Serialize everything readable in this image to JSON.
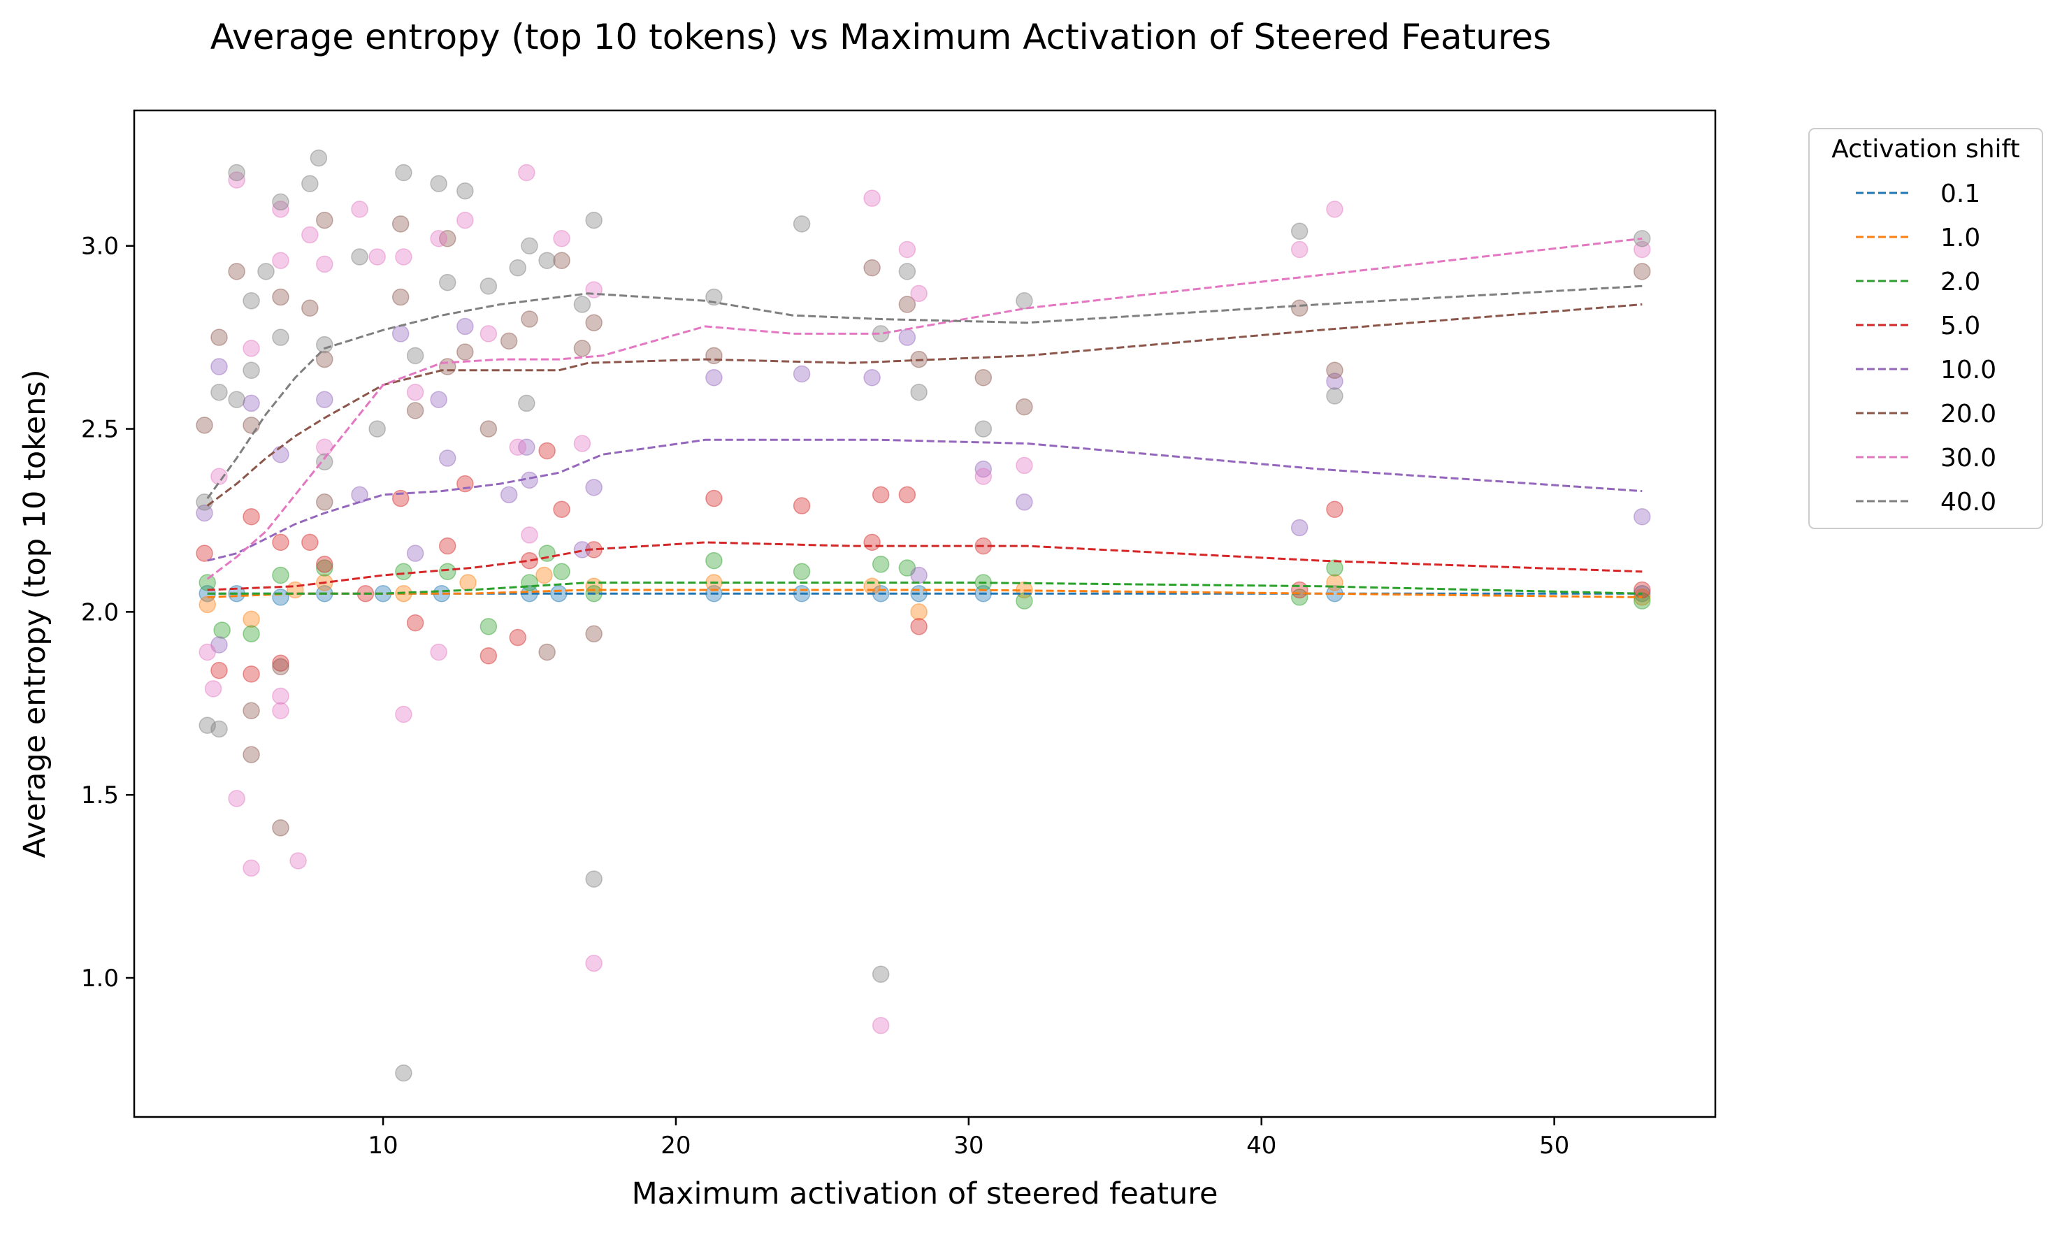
{
  "chart_data": {
    "type": "scatter",
    "title": "Average entropy (top 10 tokens) vs Maximum Activation of Steered Features",
    "xlabel": "Maximum activation of steered feature",
    "ylabel": "Average entropy (top 10 tokens)",
    "xlim": [
      1.5,
      55.5
    ],
    "ylim": [
      0.62,
      3.37
    ],
    "xticks": [
      10,
      20,
      30,
      40,
      50
    ],
    "yticks": [
      1.0,
      1.5,
      2.0,
      2.5,
      3.0
    ],
    "ytick_labels": [
      "1.0",
      "1.5",
      "2.0",
      "2.5",
      "3.0"
    ],
    "grid": false,
    "legend_title": "Activation shift",
    "legend_position": "outside-right-top",
    "series": [
      {
        "name": "0.1",
        "color": "#1f77b4",
        "trend": {
          "x": [
            4,
            7,
            10,
            13,
            17,
            21,
            26,
            30,
            42,
            53
          ],
          "y": [
            2.05,
            2.05,
            2.05,
            2.05,
            2.05,
            2.05,
            2.05,
            2.05,
            2.05,
            2.05
          ]
        },
        "points": [
          [
            4,
            2.05
          ],
          [
            5,
            2.05
          ],
          [
            6.5,
            2.04
          ],
          [
            8,
            2.05
          ],
          [
            10,
            2.05
          ],
          [
            12,
            2.05
          ],
          [
            15,
            2.05
          ],
          [
            16,
            2.05
          ],
          [
            21.3,
            2.05
          ],
          [
            24.3,
            2.05
          ],
          [
            27,
            2.05
          ],
          [
            28.3,
            2.05
          ],
          [
            30.5,
            2.05
          ],
          [
            42.5,
            2.05
          ],
          [
            53,
            2.05
          ]
        ]
      },
      {
        "name": "1.0",
        "color": "#ff7f0e",
        "trend": {
          "x": [
            4,
            7,
            10,
            13,
            17,
            21,
            26,
            30,
            42,
            53
          ],
          "y": [
            2.04,
            2.05,
            2.05,
            2.05,
            2.06,
            2.06,
            2.06,
            2.06,
            2.05,
            2.04
          ]
        },
        "points": [
          [
            4,
            2.02
          ],
          [
            5.5,
            1.98
          ],
          [
            7,
            2.06
          ],
          [
            8,
            2.08
          ],
          [
            10.7,
            2.05
          ],
          [
            12.9,
            2.08
          ],
          [
            15.5,
            2.1
          ],
          [
            17.2,
            2.07
          ],
          [
            21.3,
            2.08
          ],
          [
            26.7,
            2.07
          ],
          [
            28.3,
            2.0
          ],
          [
            31.9,
            2.06
          ],
          [
            42.5,
            2.08
          ],
          [
            53,
            2.04
          ]
        ]
      },
      {
        "name": "2.0",
        "color": "#2ca02c",
        "trend": {
          "x": [
            4,
            7,
            10,
            13,
            17,
            21,
            26,
            30,
            42,
            53
          ],
          "y": [
            2.05,
            2.05,
            2.05,
            2.06,
            2.08,
            2.08,
            2.08,
            2.08,
            2.07,
            2.05
          ]
        },
        "points": [
          [
            4,
            2.08
          ],
          [
            4.5,
            1.95
          ],
          [
            5.5,
            1.94
          ],
          [
            6.5,
            2.1
          ],
          [
            8,
            2.12
          ],
          [
            10.7,
            2.11
          ],
          [
            12.2,
            2.11
          ],
          [
            13.6,
            1.96
          ],
          [
            15,
            2.08
          ],
          [
            15.6,
            2.16
          ],
          [
            16.1,
            2.11
          ],
          [
            17.2,
            2.05
          ],
          [
            21.3,
            2.14
          ],
          [
            24.3,
            2.11
          ],
          [
            27,
            2.13
          ],
          [
            27.9,
            2.12
          ],
          [
            30.5,
            2.08
          ],
          [
            31.9,
            2.03
          ],
          [
            41.3,
            2.04
          ],
          [
            42.5,
            2.12
          ],
          [
            53,
            2.03
          ]
        ]
      },
      {
        "name": "5.0",
        "color": "#d62728",
        "trend": {
          "x": [
            4,
            7,
            10,
            13,
            15,
            17,
            21,
            26,
            32,
            42,
            53
          ],
          "y": [
            2.06,
            2.07,
            2.1,
            2.12,
            2.14,
            2.17,
            2.19,
            2.18,
            2.18,
            2.14,
            2.11
          ]
        },
        "points": [
          [
            3.9,
            2.16
          ],
          [
            4.4,
            1.84
          ],
          [
            5.5,
            2.26
          ],
          [
            5.5,
            1.83
          ],
          [
            6.5,
            2.19
          ],
          [
            6.5,
            1.86
          ],
          [
            7.5,
            2.19
          ],
          [
            8,
            2.13
          ],
          [
            9.4,
            2.05
          ],
          [
            10.6,
            2.31
          ],
          [
            11.1,
            1.97
          ],
          [
            12.2,
            2.18
          ],
          [
            12.8,
            2.35
          ],
          [
            13.6,
            1.88
          ],
          [
            14.6,
            1.93
          ],
          [
            15,
            2.14
          ],
          [
            15.6,
            2.44
          ],
          [
            16.1,
            2.28
          ],
          [
            17.2,
            2.17
          ],
          [
            21.3,
            2.31
          ],
          [
            24.3,
            2.29
          ],
          [
            26.7,
            2.19
          ],
          [
            27,
            2.32
          ],
          [
            27.9,
            2.32
          ],
          [
            28.3,
            1.96
          ],
          [
            30.5,
            2.18
          ],
          [
            41.3,
            2.06
          ],
          [
            42.5,
            2.28
          ],
          [
            53,
            2.06
          ]
        ]
      },
      {
        "name": "10.0",
        "color": "#9467bd",
        "trend": {
          "x": [
            4,
            5,
            6,
            7,
            8,
            10,
            12,
            14,
            16,
            17.5,
            21,
            27,
            32,
            42,
            53
          ],
          "y": [
            2.14,
            2.16,
            2.2,
            2.24,
            2.27,
            2.32,
            2.33,
            2.35,
            2.38,
            2.43,
            2.47,
            2.47,
            2.46,
            2.39,
            2.33
          ]
        },
        "points": [
          [
            3.9,
            2.27
          ],
          [
            4.4,
            2.67
          ],
          [
            4.4,
            1.91
          ],
          [
            5.5,
            2.57
          ],
          [
            6.5,
            2.43
          ],
          [
            8,
            2.58
          ],
          [
            9.2,
            2.32
          ],
          [
            10.6,
            2.76
          ],
          [
            11.1,
            2.16
          ],
          [
            11.9,
            2.58
          ],
          [
            12.2,
            2.42
          ],
          [
            12.8,
            2.78
          ],
          [
            14.3,
            2.32
          ],
          [
            14.9,
            2.45
          ],
          [
            15,
            2.36
          ],
          [
            16.8,
            2.17
          ],
          [
            17.2,
            2.34
          ],
          [
            21.3,
            2.64
          ],
          [
            24.3,
            2.65
          ],
          [
            26.7,
            2.64
          ],
          [
            27.9,
            2.75
          ],
          [
            28.3,
            2.1
          ],
          [
            30.5,
            2.39
          ],
          [
            31.9,
            2.3
          ],
          [
            41.3,
            2.23
          ],
          [
            42.5,
            2.63
          ],
          [
            53,
            2.26
          ]
        ]
      },
      {
        "name": "20.0",
        "color": "#8c564b",
        "trend": {
          "x": [
            4,
            5,
            6,
            7,
            8,
            10,
            12,
            14,
            16,
            17,
            21,
            26,
            32,
            42,
            53
          ],
          "y": [
            2.29,
            2.35,
            2.42,
            2.48,
            2.53,
            2.62,
            2.66,
            2.66,
            2.66,
            2.68,
            2.69,
            2.68,
            2.7,
            2.77,
            2.84
          ]
        },
        "points": [
          [
            3.9,
            2.51
          ],
          [
            4.4,
            2.75
          ],
          [
            5,
            2.93
          ],
          [
            5.5,
            2.51
          ],
          [
            5.5,
            1.73
          ],
          [
            5.5,
            1.61
          ],
          [
            6.5,
            2.86
          ],
          [
            6.5,
            1.41
          ],
          [
            6.5,
            1.85
          ],
          [
            7.5,
            2.83
          ],
          [
            8,
            3.07
          ],
          [
            8,
            2.69
          ],
          [
            8,
            2.3
          ],
          [
            10.6,
            3.06
          ],
          [
            10.6,
            2.86
          ],
          [
            11.1,
            2.55
          ],
          [
            12.2,
            2.67
          ],
          [
            12.2,
            3.02
          ],
          [
            12.8,
            2.71
          ],
          [
            13.6,
            2.5
          ],
          [
            14.3,
            2.74
          ],
          [
            15,
            2.8
          ],
          [
            15.6,
            1.89
          ],
          [
            16.1,
            2.96
          ],
          [
            16.8,
            2.72
          ],
          [
            17.2,
            2.79
          ],
          [
            17.2,
            1.94
          ],
          [
            21.3,
            2.7
          ],
          [
            26.7,
            2.94
          ],
          [
            27.9,
            2.84
          ],
          [
            28.3,
            2.69
          ],
          [
            30.5,
            2.64
          ],
          [
            31.9,
            2.56
          ],
          [
            41.3,
            2.83
          ],
          [
            42.5,
            2.66
          ],
          [
            53,
            2.93
          ]
        ]
      },
      {
        "name": "30.0",
        "color": "#e377c2",
        "trend": {
          "x": [
            4,
            5,
            6,
            7,
            8,
            10,
            12,
            14,
            16,
            17.5,
            21,
            24,
            27,
            32,
            42,
            53
          ],
          "y": [
            2.09,
            2.15,
            2.22,
            2.32,
            2.42,
            2.62,
            2.68,
            2.69,
            2.69,
            2.7,
            2.78,
            2.76,
            2.76,
            2.83,
            2.92,
            3.02
          ]
        },
        "points": [
          [
            4,
            1.89
          ],
          [
            4.2,
            1.79
          ],
          [
            4.4,
            2.37
          ],
          [
            5,
            1.49
          ],
          [
            5,
            3.18
          ],
          [
            5.5,
            2.72
          ],
          [
            5.5,
            1.3
          ],
          [
            6.5,
            2.96
          ],
          [
            6.5,
            3.1
          ],
          [
            6.5,
            1.77
          ],
          [
            6.5,
            1.73
          ],
          [
            7.1,
            1.32
          ],
          [
            7.5,
            3.03
          ],
          [
            8,
            2.95
          ],
          [
            8,
            2.45
          ],
          [
            9.2,
            3.1
          ],
          [
            9.8,
            2.97
          ],
          [
            10.7,
            2.97
          ],
          [
            10.7,
            1.72
          ],
          [
            11.1,
            2.6
          ],
          [
            11.9,
            3.02
          ],
          [
            11.9,
            1.89
          ],
          [
            12.8,
            3.07
          ],
          [
            13.6,
            2.76
          ],
          [
            14.6,
            2.45
          ],
          [
            14.9,
            3.2
          ],
          [
            15,
            2.21
          ],
          [
            16.1,
            3.02
          ],
          [
            16.8,
            2.46
          ],
          [
            17.2,
            2.88
          ],
          [
            17.2,
            1.04
          ],
          [
            26.7,
            3.13
          ],
          [
            27,
            0.87
          ],
          [
            27.9,
            2.99
          ],
          [
            28.3,
            2.87
          ],
          [
            30.5,
            2.37
          ],
          [
            31.9,
            2.4
          ],
          [
            41.3,
            2.99
          ],
          [
            42.5,
            3.1
          ],
          [
            53,
            2.99
          ]
        ]
      },
      {
        "name": "40.0",
        "color": "#7f7f7f",
        "trend": {
          "x": [
            4,
            5,
            6,
            7,
            8,
            10,
            12,
            14,
            16,
            17,
            21,
            24,
            27,
            32,
            42,
            53
          ],
          "y": [
            2.31,
            2.42,
            2.54,
            2.64,
            2.72,
            2.77,
            2.81,
            2.84,
            2.86,
            2.87,
            2.85,
            2.81,
            2.8,
            2.79,
            2.84,
            2.89
          ]
        },
        "points": [
          [
            3.9,
            2.3
          ],
          [
            4,
            1.69
          ],
          [
            4.4,
            2.6
          ],
          [
            4.4,
            1.68
          ],
          [
            5,
            3.2
          ],
          [
            5,
            2.58
          ],
          [
            5.5,
            2.85
          ],
          [
            5.5,
            2.66
          ],
          [
            6,
            2.93
          ],
          [
            6.5,
            3.12
          ],
          [
            6.5,
            2.75
          ],
          [
            7.5,
            3.17
          ],
          [
            7.8,
            3.24
          ],
          [
            8,
            2.73
          ],
          [
            8,
            2.41
          ],
          [
            9.2,
            2.97
          ],
          [
            9.8,
            2.5
          ],
          [
            10.7,
            3.2
          ],
          [
            10.7,
            0.74
          ],
          [
            11.1,
            2.7
          ],
          [
            11.9,
            3.17
          ],
          [
            12.2,
            2.9
          ],
          [
            12.8,
            3.15
          ],
          [
            13.6,
            2.89
          ],
          [
            14.6,
            2.94
          ],
          [
            14.9,
            2.57
          ],
          [
            15,
            3.0
          ],
          [
            15.6,
            2.96
          ],
          [
            16.8,
            2.84
          ],
          [
            17.2,
            3.07
          ],
          [
            17.2,
            1.27
          ],
          [
            21.3,
            2.86
          ],
          [
            24.3,
            3.06
          ],
          [
            27,
            2.76
          ],
          [
            27,
            1.01
          ],
          [
            27.9,
            2.93
          ],
          [
            28.3,
            2.6
          ],
          [
            30.5,
            2.5
          ],
          [
            31.9,
            2.85
          ],
          [
            41.3,
            3.04
          ],
          [
            42.5,
            2.59
          ],
          [
            53,
            3.02
          ]
        ]
      }
    ]
  }
}
